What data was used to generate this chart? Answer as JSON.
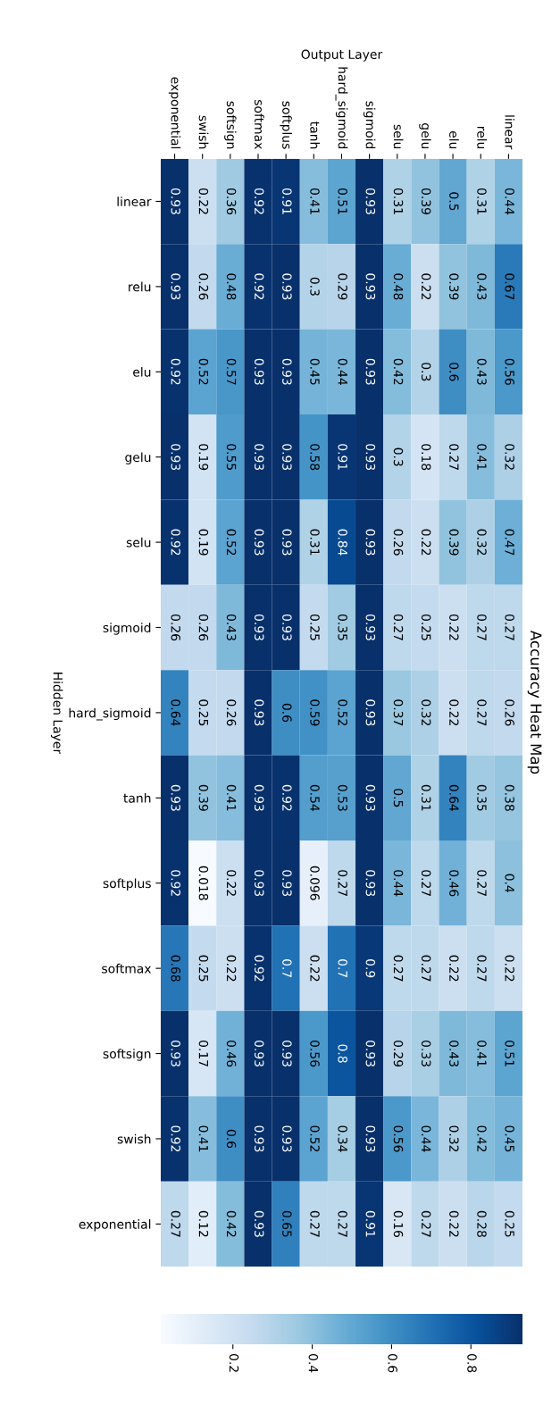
{
  "chart_data": {
    "type": "heatmap",
    "title": "Accuracy Heat Map",
    "xlabel": "Output Layer",
    "ylabel": "Hidden Layer",
    "categories": [
      "exponential",
      "swish",
      "softsign",
      "softmax",
      "softplus",
      "tanh",
      "hard_sigmoid",
      "sigmoid",
      "selu",
      "gelu",
      "elu",
      "relu",
      "linear"
    ],
    "y_categories": [
      "linear",
      "relu",
      "elu",
      "gelu",
      "selu",
      "sigmoid",
      "hard_sigmoid",
      "tanh",
      "softplus",
      "softmax",
      "softsign",
      "swish",
      "exponential"
    ],
    "cells": [
      [
        0.93,
        0.22,
        0.36,
        0.92,
        0.91,
        0.41,
        0.51,
        0.93,
        0.31,
        0.39,
        0.5,
        0.31,
        0.44
      ],
      [
        0.93,
        0.26,
        0.48,
        0.92,
        0.93,
        0.3,
        0.29,
        0.93,
        0.48,
        0.22,
        0.39,
        0.43,
        0.67
      ],
      [
        0.92,
        0.52,
        0.57,
        0.93,
        0.93,
        0.45,
        0.44,
        0.93,
        0.42,
        0.3,
        0.6,
        0.43,
        0.56
      ],
      [
        0.93,
        0.19,
        0.55,
        0.93,
        0.93,
        0.58,
        0.91,
        0.93,
        0.3,
        0.18,
        0.27,
        0.41,
        0.32
      ],
      [
        0.92,
        0.19,
        0.52,
        0.93,
        0.93,
        0.31,
        0.84,
        0.93,
        0.26,
        0.22,
        0.39,
        0.32,
        0.47
      ],
      [
        0.26,
        0.26,
        0.43,
        0.93,
        0.93,
        0.25,
        0.35,
        0.93,
        0.27,
        0.25,
        0.22,
        0.27,
        0.27
      ],
      [
        0.64,
        0.25,
        0.26,
        0.93,
        0.6,
        0.59,
        0.52,
        0.93,
        0.37,
        0.32,
        0.22,
        0.27,
        0.26
      ],
      [
        0.93,
        0.39,
        0.41,
        0.93,
        0.92,
        0.54,
        0.53,
        0.93,
        0.5,
        0.31,
        0.64,
        0.35,
        0.38
      ],
      [
        0.92,
        0.018,
        0.22,
        0.93,
        0.93,
        0.096,
        0.27,
        0.93,
        0.44,
        0.27,
        0.46,
        0.27,
        0.4
      ],
      [
        0.68,
        0.25,
        0.22,
        0.92,
        0.7,
        0.22,
        0.7,
        0.9,
        0.27,
        0.27,
        0.22,
        0.27,
        0.22
      ],
      [
        0.93,
        0.17,
        0.46,
        0.93,
        0.93,
        0.56,
        0.8,
        0.93,
        0.29,
        0.33,
        0.43,
        0.41,
        0.51
      ],
      [
        0.92,
        0.41,
        0.6,
        0.93,
        0.93,
        0.52,
        0.34,
        0.93,
        0.56,
        0.44,
        0.32,
        0.42,
        0.45
      ],
      [
        0.27,
        0.12,
        0.42,
        0.93,
        0.65,
        0.27,
        0.27,
        0.91,
        0.16,
        0.27,
        0.22,
        0.28,
        0.25
      ]
    ],
    "clim": [
      0.018,
      0.93
    ],
    "cticks": [
      0.2,
      0.4,
      0.6,
      0.8
    ],
    "data_labels": true
  }
}
